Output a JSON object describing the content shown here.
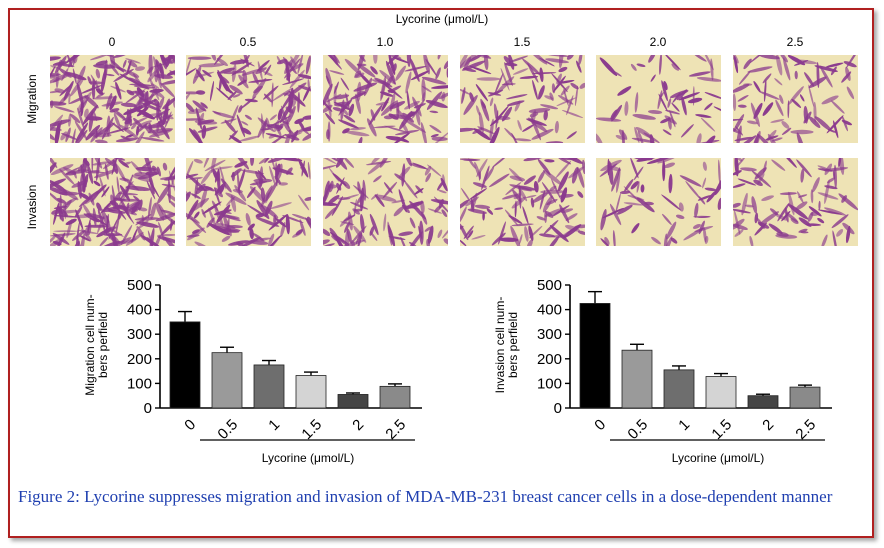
{
  "figure": {
    "header": "Lycorine (μmol/L)",
    "concentrations": [
      "0",
      "0.5",
      "1.0",
      "1.5",
      "2.0",
      "2.5"
    ],
    "rows": [
      {
        "label": "Migration",
        "densities": [
          1.0,
          0.65,
          0.55,
          0.4,
          0.18,
          0.28
        ]
      },
      {
        "label": "Invasion",
        "densities": [
          1.0,
          0.62,
          0.5,
          0.42,
          0.2,
          0.3
        ]
      }
    ],
    "colors": {
      "stain": "#8a3a8e",
      "background": "#eee3b5",
      "frame": "#b02020",
      "caption": "#1f3fb0"
    }
  },
  "chart_data": [
    {
      "type": "bar",
      "categories": [
        "0",
        "0.5",
        "1",
        "1.5",
        "2",
        "2.5"
      ],
      "values": [
        350,
        225,
        175,
        132,
        55,
        88
      ],
      "errors": [
        42,
        22,
        18,
        14,
        6,
        10
      ],
      "ylabel": "Migration cell num-bers perfield",
      "ylabel_lines": [
        "Migration cell num-",
        "bers perfield"
      ],
      "xlabel": "Lycorine (μmol/L)",
      "ylim": [
        0,
        500
      ],
      "yticks": [
        "0",
        "100",
        "200",
        "300",
        "400",
        "500"
      ],
      "bar_colors": [
        "#000000",
        "#9a9a9a",
        "#6e6e6e",
        "#d4d4d4",
        "#454545",
        "#8a8a8a"
      ]
    },
    {
      "type": "bar",
      "categories": [
        "0",
        "0.5",
        "1",
        "1.5",
        "2",
        "2.5"
      ],
      "values": [
        425,
        235,
        155,
        128,
        50,
        85
      ],
      "errors": [
        48,
        24,
        16,
        12,
        6,
        8
      ],
      "ylabel": "Invasion cell num-bers perfield",
      "ylabel_lines": [
        "Invasion cell num-",
        "bers perfield"
      ],
      "xlabel": "Lycorine (μmol/L)",
      "ylim": [
        0,
        500
      ],
      "yticks": [
        "0",
        "100",
        "200",
        "300",
        "400",
        "500"
      ],
      "bar_colors": [
        "#000000",
        "#9a9a9a",
        "#6e6e6e",
        "#d4d4d4",
        "#454545",
        "#8a8a8a"
      ]
    }
  ],
  "caption": "Figure 2: Lycorine suppresses migration and invasion of MDA-MB-231 breast cancer cells in a dose-dependent manner"
}
